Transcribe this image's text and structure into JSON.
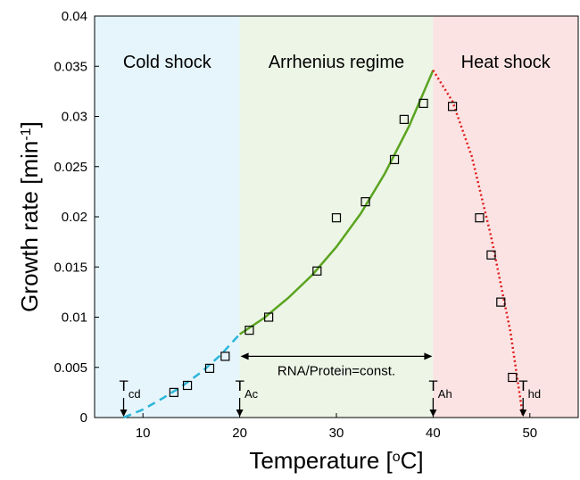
{
  "chart_data": {
    "type": "scatter",
    "xlabel": {
      "text": "Temperature [",
      "sup": "o",
      "end": "C]"
    },
    "ylabel": {
      "text": "Growth rate [min",
      "sup": "-1",
      "end": "]"
    },
    "xlim": [
      5,
      55
    ],
    "xticks": [
      10,
      20,
      30,
      40,
      50
    ],
    "ylim": [
      0,
      0.04
    ],
    "yticks": [
      0,
      0.005,
      0.01,
      0.015,
      0.02,
      0.025,
      0.03,
      0.035,
      0.04
    ],
    "regions": [
      {
        "label": "Cold shock",
        "from": 5,
        "to": 20,
        "color": "#e5f5fb"
      },
      {
        "label": "Arrhenius regime",
        "from": 20,
        "to": 40,
        "color": "#edf5e6"
      },
      {
        "label": "Heat shock",
        "from": 40,
        "to": 55,
        "color": "#fbe3e3"
      }
    ],
    "points": {
      "x": [
        13.2,
        14.6,
        16.9,
        18.5,
        21,
        23,
        28,
        30,
        33,
        36,
        37,
        39,
        42,
        44.8,
        46,
        47,
        48.2
      ],
      "y": [
        0.0025,
        0.0032,
        0.0049,
        0.0061,
        0.0087,
        0.01,
        0.0146,
        0.0199,
        0.0215,
        0.0257,
        0.0297,
        0.0313,
        0.031,
        0.0199,
        0.0162,
        0.0115,
        0.004
      ]
    },
    "curves": [
      {
        "x": [
          8,
          10,
          12,
          14,
          16,
          18,
          20
        ],
        "y": [
          0,
          0.0008,
          0.0019,
          0.0031,
          0.0045,
          0.0062,
          0.0083
        ],
        "color": "#2bb5d8",
        "dash": "9,6"
      },
      {
        "x": [
          20,
          22.5,
          25,
          27.5,
          30,
          32.5,
          35,
          37.5,
          40
        ],
        "y": [
          0.0083,
          0.0099,
          0.0119,
          0.0142,
          0.017,
          0.0203,
          0.0243,
          0.029,
          0.0346
        ],
        "color": "#5aa420",
        "dash": "none"
      },
      {
        "x": [
          40,
          42,
          44,
          46,
          48,
          49.3
        ],
        "y": [
          0.0346,
          0.0315,
          0.026,
          0.018,
          0.0085,
          0
        ],
        "color": "#e01b1b",
        "dash": "2,3"
      }
    ],
    "markers": [
      {
        "label": "T",
        "sub": "cd",
        "x": 8
      },
      {
        "label": "T",
        "sub": "Ac",
        "x": 20
      },
      {
        "label": "T",
        "sub": "Ah",
        "x": 40
      },
      {
        "label": "T",
        "sub": "hd",
        "x": 49.3
      }
    ],
    "span": {
      "label": "RNA/Protein=const.",
      "from": 20,
      "to": 40,
      "y": 0.0061
    }
  }
}
